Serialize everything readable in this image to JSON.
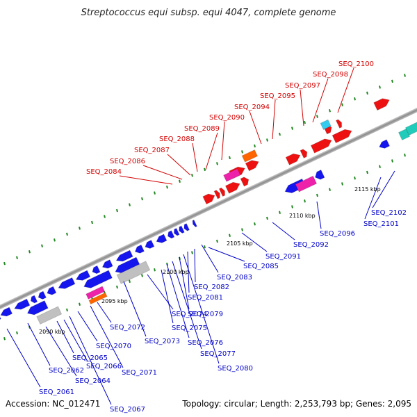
{
  "title": "Streptococcus equi subsp. equi 4047, complete genome",
  "accession": "Accession: NC_012471",
  "summary": "Topology: circular; Length: 2,253,793 bp; Genes: 2,095",
  "ticks": [
    "2090 kbp",
    "2095 kbp",
    "2100 kbp",
    "2105 kbp",
    "2110 kbp",
    "2115 kbp"
  ],
  "labels_forward": [
    "SEQ_2084",
    "SEQ_2086",
    "SEQ_2087",
    "SEQ_2088",
    "SEQ_2089",
    "SEQ_2090",
    "SEQ_2094",
    "SEQ_2095",
    "SEQ_2097",
    "SEQ_2098",
    "SEQ_2100"
  ],
  "labels_reverse": [
    "SEQ_2061",
    "SEQ_2062",
    "SEQ_2064",
    "SEQ_2065",
    "SEQ_2066",
    "SEQ_2067",
    "SEQ_2070",
    "SEQ_2071",
    "SEQ_2072",
    "SEQ_2073",
    "SEQ_2074",
    "SEQ_2075",
    "SEQ_2076",
    "SEQ_2077",
    "SEQ_2079",
    "SEQ_2080",
    "SEQ_2081",
    "SEQ_2082",
    "SEQ_2083",
    "SEQ_2085",
    "SEQ_2091",
    "SEQ_2092",
    "SEQ_2096",
    "SEQ_2101",
    "SEQ_2102"
  ],
  "colors": {
    "forward_label": "#d40000",
    "reverse_label": "#0000c8",
    "forward_gene": "#ee1111",
    "reverse_gene": "#1515ee",
    "rrna": "#ff6600",
    "trna": "#ee22aa",
    "pseudo": "#c0c0c0",
    "misc": "#22ccbb",
    "highlight": "#33ccee",
    "backbone": "#888888",
    "tick_dots": "#228822"
  }
}
